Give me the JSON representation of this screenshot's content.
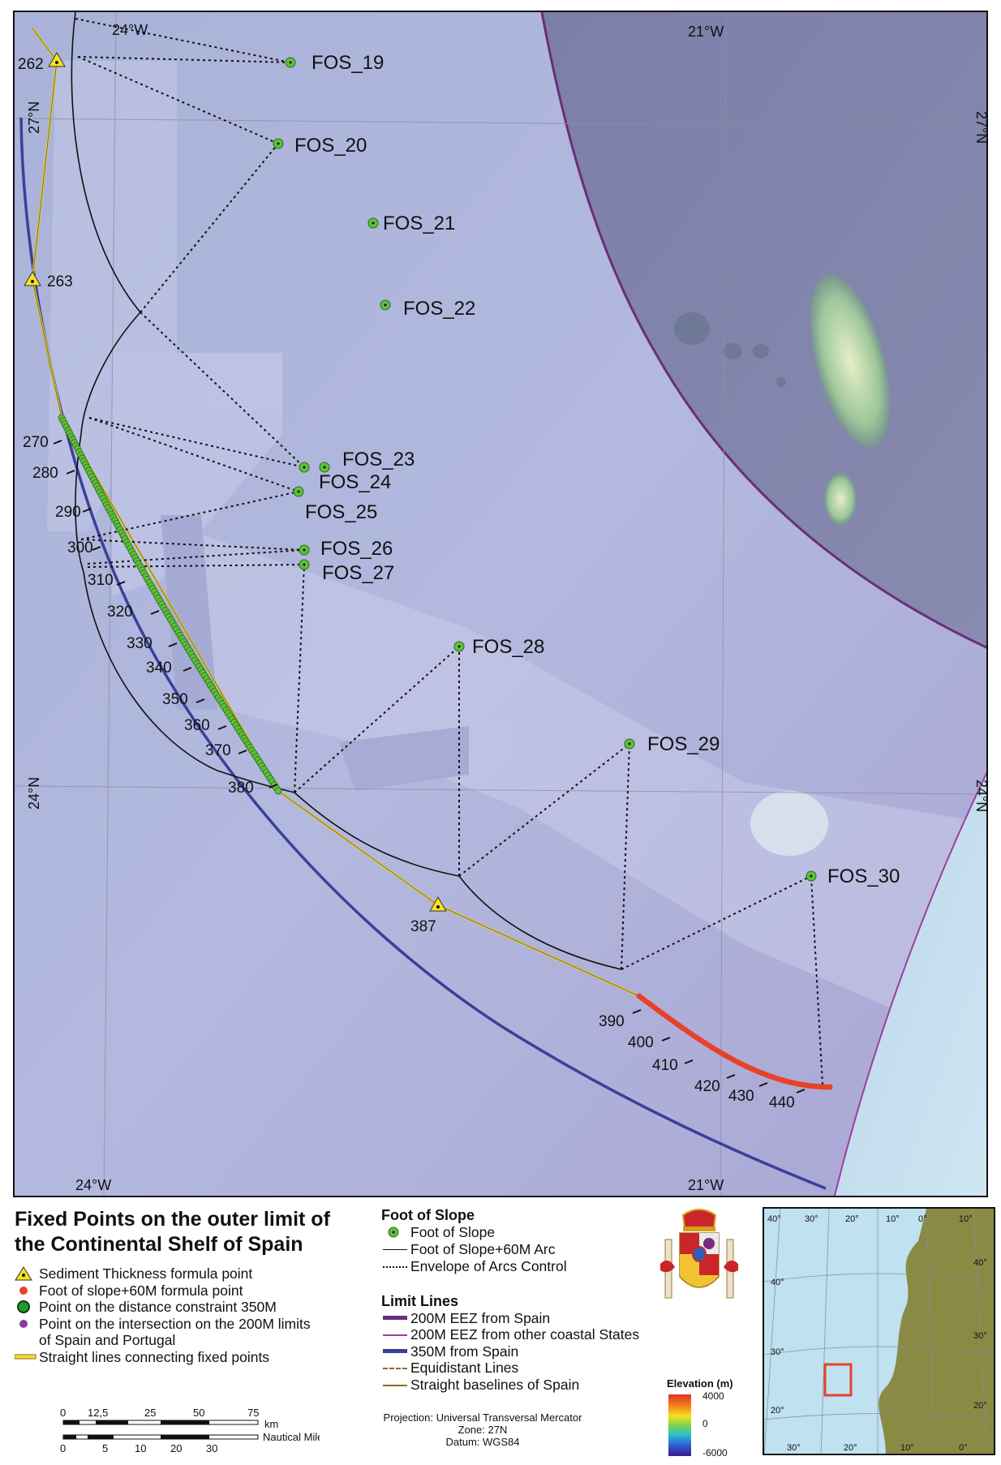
{
  "title_line1": "Fixed Points on the outer limit of",
  "title_line2": "the Continental Shelf of Spain",
  "grid_labels": {
    "lon_west": "24°W",
    "lon_east": "21°W",
    "lat_north": "27°N",
    "lat_south": "24°N"
  },
  "fos_points": [
    {
      "label": "FOS_19"
    },
    {
      "label": "FOS_20"
    },
    {
      "label": "FOS_21"
    },
    {
      "label": "FOS_22"
    },
    {
      "label": "FOS_23"
    },
    {
      "label": "FOS_24"
    },
    {
      "label": "FOS_25"
    },
    {
      "label": "FOS_26"
    },
    {
      "label": "FOS_27"
    },
    {
      "label": "FOS_28"
    },
    {
      "label": "FOS_29"
    },
    {
      "label": "FOS_30"
    }
  ],
  "sediment_points": [
    {
      "label": "262"
    },
    {
      "label": "263"
    },
    {
      "label": "387"
    }
  ],
  "point_numbers": [
    "270",
    "280",
    "290",
    "300",
    "310",
    "320",
    "330",
    "340",
    "350",
    "360",
    "370",
    "380",
    "390",
    "400",
    "410",
    "420",
    "430",
    "440"
  ],
  "legend_points": {
    "sediment": "Sediment Thickness formula point",
    "foot60": "Foot of slope+60M formula point",
    "distance350": "Point on the distance constraint 350M",
    "intersection_line1": "Point on the intersection on the 200M limits",
    "intersection_line2": "of Spain and Portugal",
    "straight": "Straight lines connecting fixed points"
  },
  "foot_of_slope": {
    "heading": "Foot of Slope",
    "fos": "Foot of Slope",
    "arc": "Foot of Slope+60M Arc",
    "envelope": "Envelope of Arcs Control"
  },
  "limit_lines": {
    "heading": "Limit Lines",
    "eez_spain": "200M EEZ from Spain",
    "eez_other": "200M EEZ from other coastal States",
    "m350": "350M from Spain",
    "equidistant": "Equidistant Lines",
    "baselines": "Straight baselines of Spain"
  },
  "colors": {
    "eez_spain": "#6b2d7d",
    "eez_other": "#9b3fa0",
    "m350": "#3b3f9a",
    "equidistant": "#8a6a2a",
    "baselines": "#8a6a2a",
    "fos_green": "#5fbf3a",
    "foot60_red": "#e8412a",
    "sediment_yellow": "#f5e21e"
  },
  "scale": {
    "km_ticks": [
      "0",
      "12,5",
      "25",
      "50",
      "75"
    ],
    "km_unit": "km",
    "nm_ticks": [
      "0",
      "5",
      "10",
      "20",
      "30"
    ],
    "nm_unit": "Nautical Miles"
  },
  "projection": {
    "line1": "Projection: Universal Transversal Mercator",
    "line2": "Zone: 27N",
    "line3": "Datum: WGS84"
  },
  "elevation": {
    "title": "Elevation (m)",
    "max": "4000",
    "mid": "0",
    "min": "-6000"
  },
  "inset": {
    "top_labels": [
      "40°",
      "30°",
      "20°",
      "10°",
      "0°",
      "10°"
    ],
    "left_labels": [
      "40°",
      "30°",
      "20°"
    ],
    "right_labels": [
      "40°",
      "30°",
      "20°"
    ],
    "bottom_labels": [
      "30°",
      "20°",
      "10°",
      "0°"
    ]
  }
}
